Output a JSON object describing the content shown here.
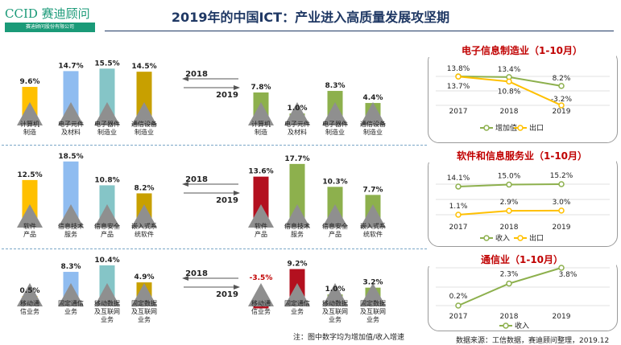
{
  "header": {
    "logo_main": "CCID 赛迪顾问",
    "logo_sub": "赛迪顾问股份有限公司",
    "title": "2019年的中国ICT：产业进入高质量发展攻坚期"
  },
  "rows": [
    {
      "year_from": "2018",
      "year_to": "2019",
      "left_bars": [
        {
          "label": [
            "计算机",
            "制造"
          ],
          "value": 9.6,
          "display": "9.6%",
          "color": "#ffc000"
        },
        {
          "label": [
            "电子元件",
            "及材料"
          ],
          "value": 14.7,
          "display": "14.7%",
          "color": "#8fbcf0"
        },
        {
          "label": [
            "电子器件",
            "制造业"
          ],
          "value": 15.5,
          "display": "15.5%",
          "color": "#85c5c7"
        },
        {
          "label": [
            "通信设备",
            "制造业"
          ],
          "value": 14.5,
          "display": "14.5%",
          "color": "#c8a000"
        }
      ],
      "right_bars": [
        {
          "label": [
            "计算机",
            "制造"
          ],
          "value": 7.8,
          "display": "7.8%",
          "color": "#8db04d"
        },
        {
          "label": [
            "电子元件",
            "及材料"
          ],
          "value": 1.0,
          "display": "1.0%",
          "color": "#8db04d"
        },
        {
          "label": [
            "电子器件",
            "制造业"
          ],
          "value": 8.3,
          "display": "8.3%",
          "color": "#8db04d"
        },
        {
          "label": [
            "通信设备",
            "制造业"
          ],
          "value": 4.4,
          "display": "4.4%",
          "color": "#8db04d"
        }
      ]
    },
    {
      "year_from": "2018",
      "year_to": "2019",
      "left_bars": [
        {
          "label": [
            "软件",
            "产品"
          ],
          "value": 12.5,
          "display": "12.5%",
          "color": "#ffc000"
        },
        {
          "label": [
            "信息技术",
            "服务"
          ],
          "value": 18.5,
          "display": "18.5%",
          "color": "#8fbcf0"
        },
        {
          "label": [
            "信息安全",
            "产品"
          ],
          "value": 10.8,
          "display": "10.8%",
          "color": "#85c5c7"
        },
        {
          "label": [
            "嵌入式系",
            "统软件"
          ],
          "value": 8.2,
          "display": "8.2%",
          "color": "#c8a000"
        }
      ],
      "right_bars": [
        {
          "label": [
            "软件",
            "产品"
          ],
          "value": 13.6,
          "display": "13.6%",
          "color": "#b3101f"
        },
        {
          "label": [
            "信息技术",
            "服务"
          ],
          "value": 17.7,
          "display": "17.7%",
          "color": "#8db04d"
        },
        {
          "label": [
            "信息安全",
            "产品"
          ],
          "value": 10.3,
          "display": "10.3%",
          "color": "#8db04d"
        },
        {
          "label": [
            "嵌入式系",
            "统软件"
          ],
          "value": 7.7,
          "display": "7.7%",
          "color": "#8db04d"
        }
      ]
    },
    {
      "year_from": "2018",
      "year_to": "2019",
      "left_bars": [
        {
          "label": [
            "移动通",
            "信业务"
          ],
          "value": 0.5,
          "display": "0.5%",
          "color": "#ffc000"
        },
        {
          "label": [
            "固定通信",
            "业务"
          ],
          "value": 8.3,
          "display": "8.3%",
          "color": "#8fbcf0"
        },
        {
          "label": [
            "移动数据",
            "及互联网",
            "业务"
          ],
          "value": 10.4,
          "display": "10.4%",
          "color": "#85c5c7"
        },
        {
          "label": [
            "固定数据",
            "及互联网",
            "业务"
          ],
          "value": 4.9,
          "display": "4.9%",
          "color": "#c8a000"
        }
      ],
      "right_bars": [
        {
          "label": [
            "移动通",
            "信业务"
          ],
          "value": -3.5,
          "display": "-3.5%",
          "color": "#b3101f",
          "value_color": "#c00000"
        },
        {
          "label": [
            "固定通信",
            "业务"
          ],
          "value": 9.2,
          "display": "9.2%",
          "color": "#b3101f"
        },
        {
          "label": [
            "移动数据",
            "及互联网",
            "业务"
          ],
          "value": 1.0,
          "display": "1.0%",
          "color": "#8db04d"
        },
        {
          "label": [
            "固定数据",
            "及互联网",
            "业务"
          ],
          "value": 3.2,
          "display": "3.2%",
          "color": "#8db04d"
        }
      ]
    }
  ],
  "panels": [
    {
      "title": "电子信息制造业（1-10月）",
      "years": [
        "2017",
        "2018",
        "2019"
      ],
      "series": [
        {
          "name": "增加值",
          "values": [
            13.8,
            13.4,
            8.2
          ],
          "labels": [
            "13.8%",
            "13.4%",
            "8.2%"
          ],
          "color": "#8db04d"
        },
        {
          "name": "出口",
          "values": [
            13.7,
            10.8,
            -3.2
          ],
          "labels": [
            "13.7%",
            "10.8%",
            "-3.2%"
          ],
          "color": "#ffc000"
        }
      ]
    },
    {
      "title": "软件和信息服务业（1-10月）",
      "years": [
        "2017",
        "2018",
        "2019"
      ],
      "series": [
        {
          "name": "收入",
          "values": [
            14.1,
            15.0,
            15.2
          ],
          "labels": [
            "14.1%",
            "15.0%",
            "15.2%"
          ],
          "color": "#8db04d"
        },
        {
          "name": "出口",
          "values": [
            1.1,
            2.9,
            3.0
          ],
          "labels": [
            "1.1%",
            "2.9%",
            "3.0%"
          ],
          "color": "#ffc000"
        }
      ]
    },
    {
      "title": "通信业（1-10月）",
      "years": [
        "2017",
        "2018",
        "2019"
      ],
      "series": [
        {
          "name": "收入",
          "values": [
            0.2,
            2.3,
            3.8
          ],
          "labels": [
            "0.2%",
            "2.3%",
            "3.8%"
          ],
          "color": "#8db04d"
        }
      ]
    }
  ],
  "footer": {
    "note": "注：图中数字均为增加值/收入增速",
    "source": "数据来源：工信数据，赛迪顾问整理，2019.12"
  }
}
